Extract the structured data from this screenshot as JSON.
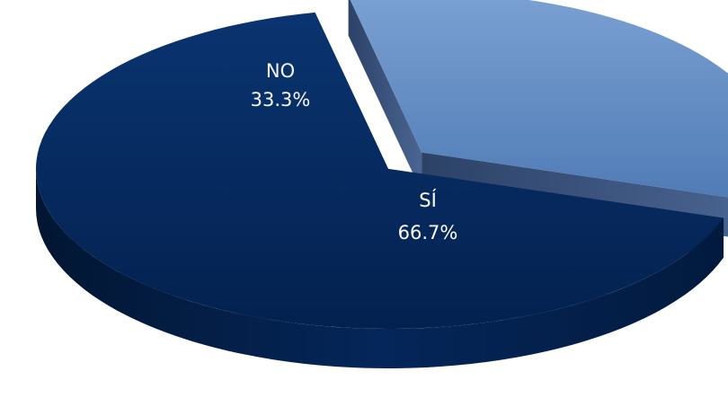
{
  "chart_data": {
    "type": "pie",
    "style": "3d-exploded",
    "slices": [
      {
        "label": "NO",
        "value": 33.3,
        "display": "33.3%",
        "color": "#5f8bc4",
        "exploded": true
      },
      {
        "label": "SÍ",
        "value": 66.7,
        "display": "66.7%",
        "color": "#05285e",
        "exploded": false
      }
    ],
    "legend": "none",
    "title": ""
  }
}
